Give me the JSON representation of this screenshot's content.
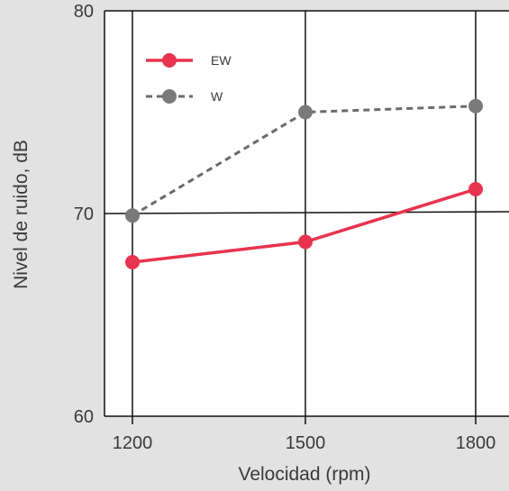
{
  "chart_data": {
    "type": "line",
    "xlabel": "Velocidad (rpm)",
    "ylabel": "Nivel de ruido, dB",
    "x": [
      1200,
      1500,
      1800
    ],
    "x_tick_labels": [
      "1200",
      "1500",
      "1800"
    ],
    "ylim": [
      60,
      80
    ],
    "y_tick_labels": [
      "60",
      "70",
      "80"
    ],
    "y_ticks": [
      60,
      70,
      80
    ],
    "grid": true,
    "legend_position": "top-left",
    "series": [
      {
        "name": "EW",
        "values": [
          67.6,
          68.6,
          71.2
        ],
        "color": "#e8344e",
        "dash": "solid"
      },
      {
        "name": "W",
        "values": [
          69.9,
          75.0,
          75.3
        ],
        "color": "#6b6b6b",
        "marker_color": "#7a7a7a",
        "dash": "dashed"
      }
    ]
  }
}
